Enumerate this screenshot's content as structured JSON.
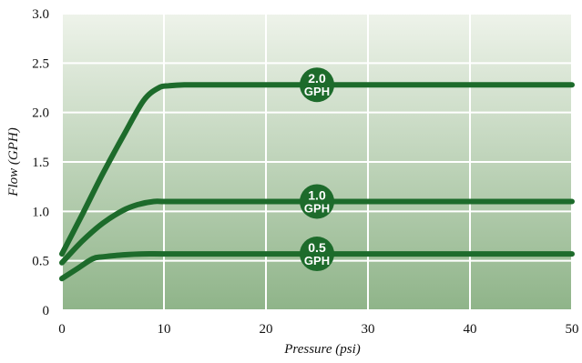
{
  "chart_data": {
    "type": "line",
    "title": "",
    "xlabel": "Pressure (psi)",
    "ylabel": "Flow (GPH)",
    "xlim": [
      0,
      50
    ],
    "ylim": [
      0,
      3.0
    ],
    "x_ticks": [
      {
        "value": 0,
        "label": "0"
      },
      {
        "value": 10,
        "label": "10"
      },
      {
        "value": 20,
        "label": "20"
      },
      {
        "value": 30,
        "label": "30"
      },
      {
        "value": 40,
        "label": "40"
      },
      {
        "value": 50,
        "label": "50"
      }
    ],
    "y_ticks": [
      {
        "value": 0,
        "label": "0"
      },
      {
        "value": 0.5,
        "label": "0.5"
      },
      {
        "value": 1.0,
        "label": "1.0"
      },
      {
        "value": 1.5,
        "label": "1.5"
      },
      {
        "value": 2.0,
        "label": "2.0"
      },
      {
        "value": 2.5,
        "label": "2.5"
      },
      {
        "value": 3.0,
        "label": "3.0"
      }
    ],
    "grid": true,
    "background_gradient": [
      "#eef3ea",
      "#8fb489"
    ],
    "grid_color": "#ffffff",
    "line_color": "#1d6b2b",
    "series": [
      {
        "badge": [
          "2.0",
          "GPH"
        ],
        "badge_x": 25,
        "x": [
          0,
          2,
          4,
          6,
          8,
          9.5,
          10.5,
          12,
          15,
          20,
          25,
          30,
          40,
          50
        ],
        "y": [
          0.57,
          0.97,
          1.38,
          1.76,
          2.12,
          2.25,
          2.27,
          2.28,
          2.28,
          2.28,
          2.28,
          2.28,
          2.28,
          2.28
        ]
      },
      {
        "badge": [
          "1.0",
          "GPH"
        ],
        "badge_x": 25,
        "x": [
          0,
          2,
          4,
          6,
          7.5,
          9,
          10,
          12,
          15,
          20,
          25,
          30,
          40,
          50
        ],
        "y": [
          0.48,
          0.7,
          0.88,
          1.01,
          1.07,
          1.1,
          1.1,
          1.1,
          1.1,
          1.1,
          1.1,
          1.1,
          1.1,
          1.1
        ]
      },
      {
        "badge": [
          "0.5",
          "GPH"
        ],
        "badge_x": 25,
        "x": [
          0,
          1.5,
          3,
          4,
          6,
          8,
          10,
          15,
          20,
          25,
          30,
          40,
          50
        ],
        "y": [
          0.32,
          0.42,
          0.52,
          0.54,
          0.56,
          0.57,
          0.57,
          0.57,
          0.57,
          0.57,
          0.57,
          0.57,
          0.57
        ]
      }
    ]
  }
}
